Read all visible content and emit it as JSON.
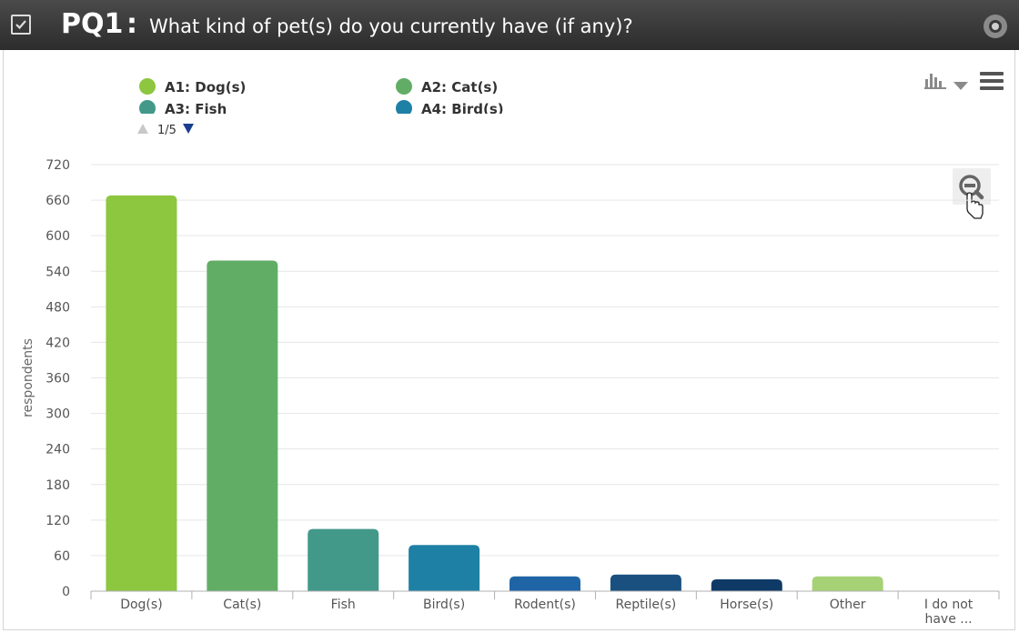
{
  "header": {
    "code": "PQ1",
    "colon": ":",
    "question": "What kind of pet(s) do you currently have (if any)?"
  },
  "legend": {
    "items": [
      {
        "label": "A1: Dog(s)",
        "color": "#8dc63f"
      },
      {
        "label": "A2: Cat(s)",
        "color": "#62ad66"
      },
      {
        "label": "A3: Fish",
        "color": "#42998a"
      },
      {
        "label": "A4: Bird(s)",
        "color": "#1f80a6"
      }
    ],
    "pager": "1/5"
  },
  "toolbar": {
    "chart_type_icon": "bar-chart-icon",
    "dropdown_icon": "caret-down-icon",
    "menu_icon": "hamburger-menu-icon",
    "zoom_icon": "zoom-out-icon"
  },
  "chart_data": {
    "type": "bar",
    "categories": [
      "Dog(s)",
      "Cat(s)",
      "Fish",
      "Bird(s)",
      "Rodent(s)",
      "Reptile(s)",
      "Horse(s)",
      "Other",
      "I do not have ..."
    ],
    "category_lines": [
      [
        "Dog(s)"
      ],
      [
        "Cat(s)"
      ],
      [
        "Fish"
      ],
      [
        "Bird(s)"
      ],
      [
        "Rodent(s)"
      ],
      [
        "Reptile(s)"
      ],
      [
        "Horse(s)"
      ],
      [
        "Other"
      ],
      [
        "I do not",
        "have ..."
      ]
    ],
    "values": [
      668,
      558,
      105,
      78,
      25,
      28,
      20,
      25,
      0
    ],
    "colors": [
      "#8dc63f",
      "#62ad66",
      "#42998a",
      "#1f80a6",
      "#1f65a6",
      "#1a5080",
      "#0f3a66",
      "#a6d175",
      "#a6d175"
    ],
    "xlabel": "",
    "ylabel": "respondents",
    "ylim": [
      0,
      720
    ],
    "yticks": [
      0,
      60,
      120,
      180,
      240,
      300,
      360,
      420,
      480,
      540,
      600,
      660,
      720
    ],
    "grid": true
  }
}
